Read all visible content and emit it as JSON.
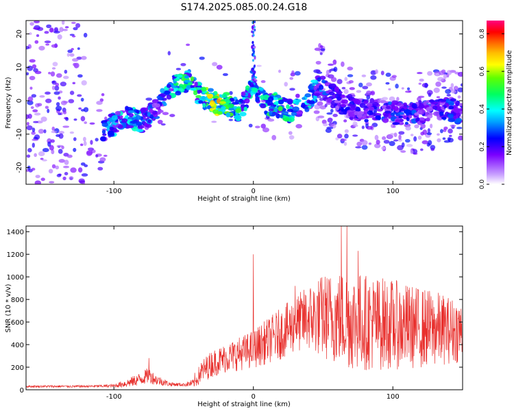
{
  "title": "S174.2025.085.00.24.G18",
  "chart_data": [
    {
      "type": "heatmap",
      "xlabel": "Height of straight line (km)",
      "ylabel": "Frequency (Hz)",
      "xlim": [
        -163,
        150
      ],
      "ylim": [
        -25,
        24
      ],
      "x_ticks": [
        -100,
        0,
        100
      ],
      "y_ticks": [
        -20,
        -10,
        0,
        10,
        20
      ],
      "x_tick_labels": [
        "-100",
        "0",
        "100"
      ],
      "y_tick_labels": [
        "-20",
        "-10",
        "0",
        "10",
        "20"
      ],
      "colorbar": {
        "label": "Normalized spectral amplitude",
        "range": [
          0,
          0.87
        ],
        "ticks": [
          0,
          0.2,
          0.4,
          0.6,
          0.8
        ],
        "tick_labels": [
          "0.0",
          "0.2",
          "0.4",
          "0.6",
          "0.8"
        ]
      },
      "ridge": {
        "x": [
          -108,
          -100,
          -90,
          -80,
          -70,
          -65,
          -60,
          -55,
          -50,
          -45,
          -40,
          -35,
          -30,
          -25,
          -20,
          -15,
          -10,
          -6,
          -3,
          0,
          3,
          6,
          10,
          15,
          20,
          25,
          30,
          35,
          40,
          44,
          48,
          55,
          65,
          75,
          85,
          95,
          105,
          115,
          125,
          135,
          145,
          150
        ],
        "freq": [
          -9,
          -7,
          -5,
          -6,
          -3,
          1,
          4,
          5,
          6,
          6,
          2,
          1,
          0,
          -1,
          -1,
          -2,
          -3,
          0,
          3,
          6,
          3,
          1,
          -1,
          -1,
          -2,
          -3,
          -2,
          -1,
          0,
          3,
          5,
          2,
          -1,
          -3,
          -3,
          -3,
          -4,
          -4,
          -3,
          -2,
          -3,
          -4
        ],
        "amp": [
          0.35,
          0.4,
          0.45,
          0.4,
          0.3,
          0.4,
          0.45,
          0.5,
          0.55,
          0.55,
          0.5,
          0.6,
          0.7,
          0.8,
          0.6,
          0.6,
          0.55,
          0.45,
          0.5,
          0.55,
          0.45,
          0.5,
          0.5,
          0.55,
          0.55,
          0.5,
          0.45,
          0.4,
          0.45,
          0.45,
          0.4,
          0.25,
          0.25,
          0.25,
          0.25,
          0.3,
          0.3,
          0.3,
          0.25,
          0.3,
          0.3,
          0.3
        ]
      }
    },
    {
      "type": "line",
      "xlabel": "Height of straight line (km)",
      "ylabel": "SNR (10 * v/v)",
      "xlim": [
        -163,
        150
      ],
      "ylim": [
        0,
        1450
      ],
      "x_ticks": [
        -100,
        0,
        100
      ],
      "y_ticks": [
        0,
        200,
        400,
        600,
        800,
        1000,
        1200,
        1400
      ],
      "x_tick_labels": [
        "-100",
        "0",
        "100"
      ],
      "y_tick_labels": [
        "0",
        "200",
        "400",
        "600",
        "800",
        "1000",
        "1200",
        "1400"
      ],
      "color": "#e8302d",
      "envelope_x": [
        -163,
        -120,
        -100,
        -90,
        -80,
        -75,
        -70,
        -60,
        -50,
        -42,
        -38,
        -30,
        -20,
        -10,
        0,
        10,
        20,
        30,
        40,
        50,
        60,
        70,
        80,
        90,
        100,
        110,
        120,
        130,
        140,
        150
      ],
      "envelope_mean": [
        30,
        30,
        35,
        60,
        100,
        130,
        90,
        50,
        45,
        60,
        150,
        230,
        280,
        320,
        360,
        430,
        500,
        580,
        640,
        650,
        640,
        620,
        600,
        590,
        580,
        560,
        550,
        540,
        530,
        520
      ],
      "envelope_spread": [
        10,
        10,
        15,
        40,
        60,
        70,
        50,
        20,
        15,
        40,
        100,
        120,
        130,
        150,
        170,
        200,
        230,
        250,
        300,
        380,
        420,
        450,
        430,
        420,
        400,
        380,
        360,
        340,
        300,
        280
      ],
      "peaks": [
        [
          -75,
          280
        ],
        [
          -42,
          150
        ],
        [
          0,
          1200
        ],
        [
          30,
          920
        ],
        [
          63,
          1450
        ],
        [
          67,
          1450
        ],
        [
          75,
          1230
        ]
      ]
    }
  ]
}
